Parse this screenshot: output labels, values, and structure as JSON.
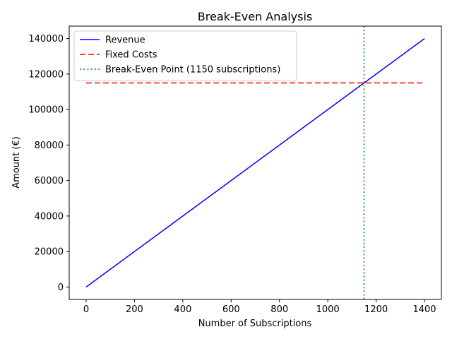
{
  "chart_data": {
    "type": "line",
    "title": "Break-Even Analysis",
    "xlabel": "Number of Subscriptions",
    "ylabel": "Amount (€)",
    "xlim": [
      -70,
      1470
    ],
    "ylim": [
      -7000,
      147000
    ],
    "x_ticks": [
      0,
      200,
      400,
      600,
      800,
      1000,
      1200,
      1400
    ],
    "y_ticks": [
      0,
      20000,
      40000,
      60000,
      80000,
      100000,
      120000,
      140000
    ],
    "grid": false,
    "legend_position": "upper-left",
    "series": [
      {
        "name": "Revenue",
        "color": "#0000ff",
        "style": "solid",
        "x": [
          0,
          1400
        ],
        "y": [
          0,
          140000
        ]
      },
      {
        "name": "Fixed Costs",
        "color": "#ff0000",
        "style": "dashed",
        "x": [
          0,
          1400
        ],
        "y": [
          115000,
          115000
        ]
      }
    ],
    "vlines": [
      {
        "name": "Break-Even Point (1150 subscriptions)",
        "color": "#008000",
        "style": "dotted",
        "x": 1150
      }
    ]
  }
}
